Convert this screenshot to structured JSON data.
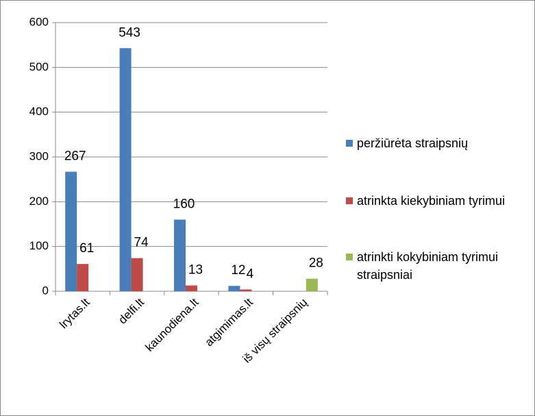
{
  "chart_data": {
    "type": "bar",
    "categories": [
      "lrytas.lt",
      "delfi.lt",
      "kaunodiena.lt",
      "atgimimas.lt",
      "iš visų straipsnių"
    ],
    "series": [
      {
        "name": "peržiūrėta straipsnių",
        "color": "#4a7ebb",
        "values": [
          267,
          543,
          160,
          12,
          null
        ]
      },
      {
        "name": "atrinkta kiekybiniam tyrimui",
        "color": "#be4b48",
        "values": [
          61,
          74,
          13,
          4,
          null
        ]
      },
      {
        "name": "atrinkti kokybiniam tyrimui  straipsniai",
        "color": "#98b954",
        "values": [
          null,
          null,
          null,
          null,
          28
        ]
      }
    ],
    "ylim": [
      0,
      600
    ],
    "yticks": [
      0,
      100,
      200,
      300,
      400,
      500,
      600
    ],
    "grid": true,
    "legend": "right"
  }
}
